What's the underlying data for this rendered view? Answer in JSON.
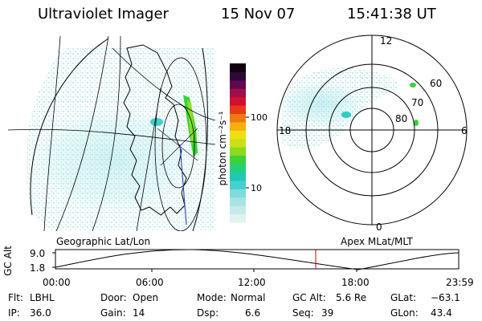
{
  "header": {
    "instrument": "Ultraviolet Imager",
    "date": "15 Nov 07",
    "time": "15:41:38 UT"
  },
  "colorbar": {
    "unit_label": "photon cm⁻²s⁻¹",
    "ticks": [
      "100",
      "10"
    ],
    "scale": "log",
    "colors": [
      "#e0f2f2",
      "#c6eaea",
      "#a6e4e4",
      "#7fdcdc",
      "#46d0d0",
      "#1fc9b4",
      "#25d07a",
      "#3ad23a",
      "#8ada1e",
      "#c8e018",
      "#f0e010",
      "#f8b010",
      "#f07a10",
      "#e83818",
      "#d01030",
      "#a01048",
      "#600850",
      "#300838",
      "#100010"
    ]
  },
  "geo_panel": {
    "label": "Geographic Lat/Lon"
  },
  "polar_panel": {
    "label": "Apex MLat/MLT",
    "mlt_labels": [
      "12",
      "18",
      "6",
      "0"
    ],
    "lat_labels": [
      "60",
      "70",
      "80"
    ]
  },
  "orbit": {
    "y_axis_label": "GC Alt",
    "y_ticks": [
      "9.0",
      "1.8"
    ],
    "x_ticks": [
      "00:00",
      "06:00",
      "12:00",
      "18:00",
      "23:59"
    ],
    "marker_color": "#cc0000"
  },
  "info": {
    "row1": [
      {
        "key": "Flt:",
        "val": "LBHL"
      },
      {
        "key": "Door:",
        "val": "Open"
      },
      {
        "key": "Mode:",
        "val": "Normal"
      },
      {
        "key": "GC Alt:",
        "val": "5.6 Re"
      },
      {
        "key": "GLat:",
        "val": "−63.1"
      }
    ],
    "row2": [
      {
        "key": "IP:",
        "val": "36.0"
      },
      {
        "key": "Gain:",
        "val": "14"
      },
      {
        "key": "Dsp:",
        "val": "6.6"
      },
      {
        "key": "Seq:",
        "val": "39"
      },
      {
        "key": "GLon:",
        "val": "43.4"
      }
    ]
  }
}
